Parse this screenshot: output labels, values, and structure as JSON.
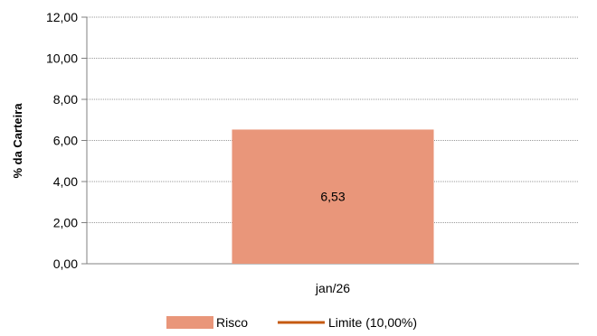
{
  "chart_data": {
    "type": "bar",
    "categories": [
      "jan/26"
    ],
    "series": [
      {
        "name": "Risco",
        "kind": "bar",
        "color": "#E9967A",
        "values": [
          6.53
        ],
        "data_labels": [
          "6,53"
        ]
      },
      {
        "name": "Limite (10,00%)",
        "kind": "line",
        "color": "#C55A11",
        "values": [
          10.0
        ]
      }
    ],
    "ylabel": "% da Carteira",
    "ylim": [
      0,
      12
    ],
    "yticks": [
      0,
      2,
      4,
      6,
      8,
      10,
      12
    ],
    "ytick_labels": [
      "0,00",
      "2,00",
      "4,00",
      "6,00",
      "8,00",
      "10,00",
      "12,00"
    ],
    "grid": true,
    "legend_position": "bottom"
  }
}
